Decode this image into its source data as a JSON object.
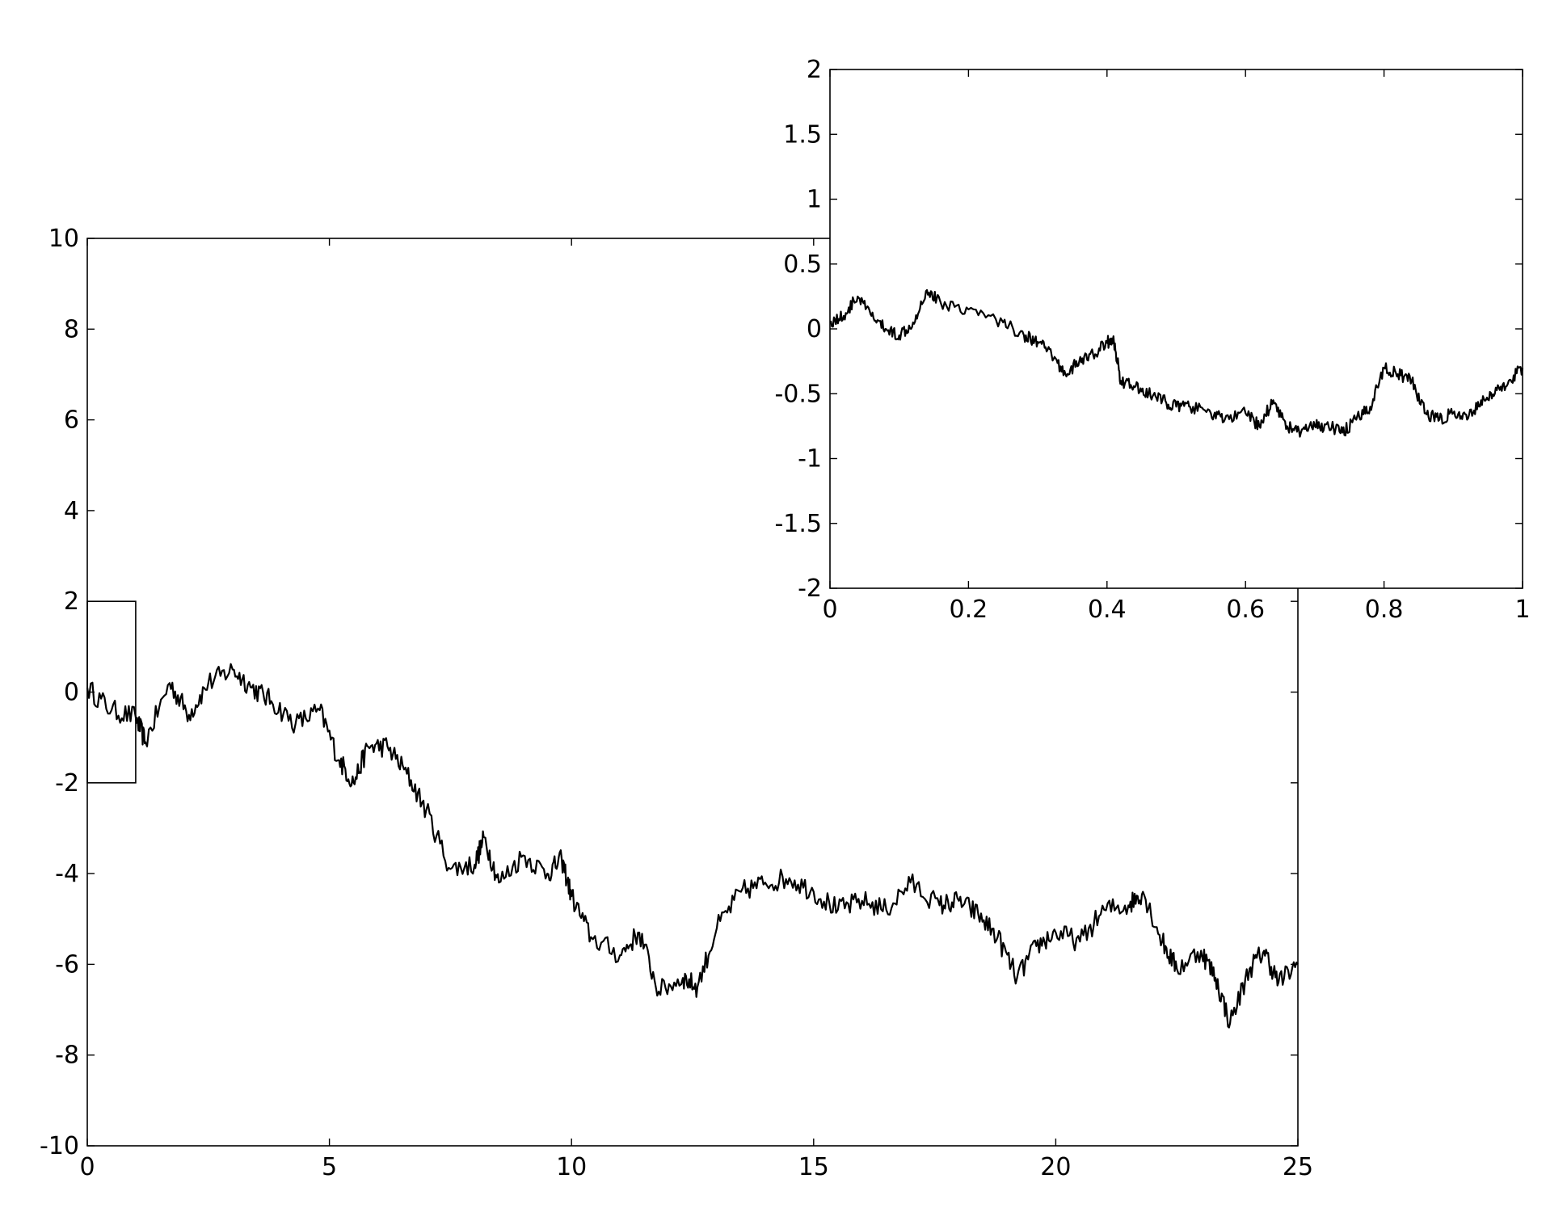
{
  "chart_data": [
    {
      "type": "line",
      "title": "",
      "xlabel": "",
      "ylabel": "",
      "xlim": [
        0,
        25
      ],
      "ylim": [
        -10,
        10
      ],
      "x_ticks": [
        0,
        5,
        10,
        15,
        20,
        25
      ],
      "y_ticks": [
        -10,
        -8,
        -6,
        -4,
        -2,
        0,
        2,
        4,
        6,
        8,
        10
      ],
      "x_tick_labels": [
        "0",
        "5",
        "10",
        "15",
        "20",
        "25"
      ],
      "y_tick_labels": [
        "-10",
        "-8",
        "-6",
        "-4",
        "-2",
        "0",
        "2",
        "4",
        "6",
        "8",
        "10"
      ],
      "grid": false,
      "line_color": "#000000",
      "zoom_box": {
        "x": [
          0,
          1
        ],
        "y": [
          -2,
          2
        ]
      },
      "series": [
        {
          "x": [
            0,
            0.5,
            1,
            1.2,
            1.7,
            2.1,
            2.5,
            3,
            3.4,
            3.8,
            4.3,
            4.8,
            5.2,
            5.5,
            5.8,
            6.2,
            6.6,
            7,
            7.5,
            8,
            8.2,
            8.5,
            9,
            9.5,
            9.8,
            10,
            10.4,
            11,
            11.4,
            11.8,
            12.3,
            12.6,
            13,
            13.5,
            14,
            14.5,
            15,
            15.5,
            16,
            16.5,
            17,
            17.6,
            18,
            18.4,
            18.8,
            19.2,
            19.6,
            20,
            20.5,
            21,
            21.5,
            21.8,
            22.2,
            22.5,
            23,
            23.3,
            23.6,
            24,
            24.3,
            24.6,
            25
          ],
          "y": [
            0.1,
            -0.4,
            -0.55,
            -1.1,
            0.2,
            -0.5,
            0.2,
            0.5,
            0.1,
            -0.2,
            -0.7,
            -0.4,
            -1.5,
            -2.0,
            -1.2,
            -1.2,
            -1.8,
            -2.6,
            -3.9,
            -3.8,
            -3.2,
            -4.2,
            -3.6,
            -4.0,
            -3.7,
            -4.5,
            -5.4,
            -5.8,
            -5.3,
            -6.6,
            -6.3,
            -6.5,
            -5.2,
            -4.4,
            -4.2,
            -4.1,
            -4.4,
            -4.8,
            -4.6,
            -4.8,
            -4.2,
            -4.7,
            -4.6,
            -4.9,
            -5.4,
            -6.3,
            -5.6,
            -5.3,
            -5.5,
            -4.8,
            -4.7,
            -4.4,
            -5.5,
            -6.1,
            -5.7,
            -6.3,
            -7.3,
            -6.1,
            -5.7,
            -6.4,
            -6.0
          ]
        }
      ]
    },
    {
      "type": "line",
      "title": "",
      "xlabel": "",
      "ylabel": "",
      "xlim": [
        0,
        1
      ],
      "ylim": [
        -2,
        2
      ],
      "x_ticks": [
        0,
        0.2,
        0.4,
        0.6,
        0.8,
        1
      ],
      "y_ticks": [
        -2,
        -1.5,
        -1,
        -0.5,
        0,
        0.5,
        1,
        1.5,
        2
      ],
      "x_tick_labels": [
        "0",
        "0.2",
        "0.4",
        "0.6",
        "0.8",
        "1"
      ],
      "y_tick_labels": [
        "-2",
        "-1.5",
        "-1",
        "-0.5",
        "0",
        "0.5",
        "1",
        "1.5",
        "2"
      ],
      "grid": false,
      "line_color": "#000000",
      "series": [
        {
          "x": [
            0,
            0.02,
            0.04,
            0.06,
            0.08,
            0.1,
            0.12,
            0.14,
            0.16,
            0.2,
            0.25,
            0.28,
            0.3,
            0.32,
            0.34,
            0.36,
            0.38,
            0.4,
            0.41,
            0.42,
            0.44,
            0.46,
            0.48,
            0.5,
            0.52,
            0.55,
            0.57,
            0.6,
            0.62,
            0.64,
            0.66,
            0.68,
            0.7,
            0.72,
            0.74,
            0.76,
            0.78,
            0.8,
            0.82,
            0.84,
            0.86,
            0.88,
            0.9,
            0.92,
            0.94,
            0.96,
            0.98,
            1
          ],
          "y": [
            0.05,
            0.1,
            0.25,
            0.1,
            0.0,
            -0.05,
            0.05,
            0.3,
            0.2,
            0.15,
            0.05,
            -0.05,
            -0.1,
            -0.2,
            -0.35,
            -0.25,
            -0.2,
            -0.1,
            -0.1,
            -0.4,
            -0.45,
            -0.5,
            -0.55,
            -0.6,
            -0.6,
            -0.65,
            -0.7,
            -0.65,
            -0.75,
            -0.55,
            -0.75,
            -0.8,
            -0.75,
            -0.75,
            -0.8,
            -0.7,
            -0.6,
            -0.3,
            -0.35,
            -0.4,
            -0.65,
            -0.7,
            -0.65,
            -0.7,
            -0.55,
            -0.5,
            -0.4,
            -0.3
          ]
        }
      ]
    }
  ]
}
